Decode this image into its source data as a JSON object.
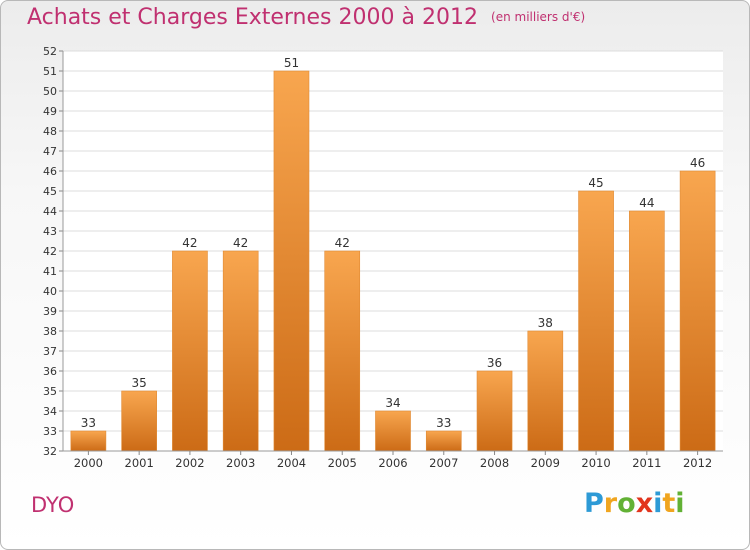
{
  "title": "Achats et Charges Externes 2000 à 2012",
  "unit": "(en milliers d'€)",
  "commune": "DYO",
  "logo": {
    "text": "Proxiti",
    "letters": [
      {
        "ch": "P",
        "color": "#2d9ad6"
      },
      {
        "ch": "r",
        "color": "#f0a51f"
      },
      {
        "ch": "o",
        "color": "#62b135"
      },
      {
        "ch": "x",
        "color": "#e2341d"
      },
      {
        "ch": "i",
        "color": "#2d9ad6"
      },
      {
        "ch": "t",
        "color": "#f0a51f"
      },
      {
        "ch": "i",
        "color": "#62b135"
      }
    ]
  },
  "colors": {
    "bar_light": "#f8a64f",
    "bar_dark": "#cc6b16",
    "title": "#c03070",
    "grid": "#dcdcdc"
  },
  "chart_data": {
    "type": "bar",
    "categories": [
      "2000",
      "2001",
      "2002",
      "2003",
      "2004",
      "2005",
      "2006",
      "2007",
      "2008",
      "2009",
      "2010",
      "2011",
      "2012"
    ],
    "values": [
      33,
      35,
      42,
      42,
      51,
      42,
      34,
      33,
      36,
      38,
      45,
      44,
      46
    ],
    "ylim": [
      32,
      52
    ],
    "yticks": [
      32,
      33,
      34,
      35,
      36,
      37,
      38,
      39,
      40,
      41,
      42,
      43,
      44,
      45,
      46,
      47,
      48,
      49,
      50,
      51,
      52
    ],
    "grid": true,
    "legend": "none"
  }
}
